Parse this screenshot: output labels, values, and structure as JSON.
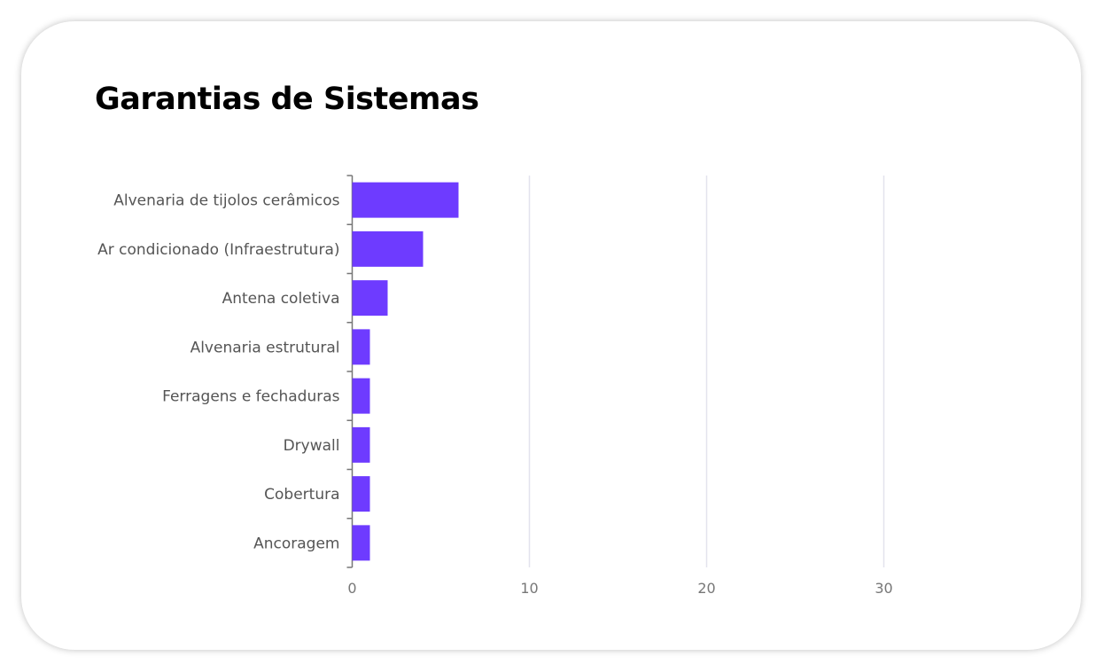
{
  "title": "Garantias de Sistemas",
  "chart_data": {
    "type": "bar",
    "orientation": "horizontal",
    "title": "Garantias de Sistemas",
    "categories": [
      "Alvenaria de tijolos cerâmicos",
      "Ar condicionado (Infraestrutura)",
      "Antena coletiva",
      "Alvenaria estrutural",
      "Ferragens e fechaduras",
      "Drywall",
      "Cobertura",
      "Ancoragem"
    ],
    "values": [
      6,
      4,
      2,
      1,
      1,
      1,
      1,
      1
    ],
    "xticks": [
      "0",
      "10",
      "20",
      "30"
    ],
    "xlim": [
      0,
      35
    ],
    "grid": "vertical",
    "color": "#6e3bff"
  }
}
